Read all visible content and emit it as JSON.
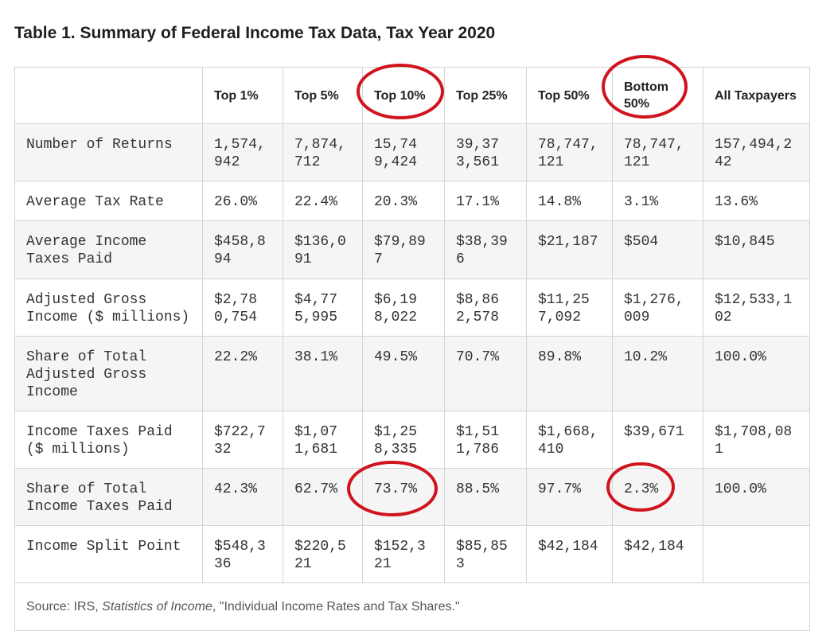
{
  "title": "Table 1. Summary of Federal Income Tax Data, Tax Year 2020",
  "table": {
    "headers": [
      "",
      "Top 1%",
      "Top 5%",
      "Top 10%",
      "Top 25%",
      "Top 50%",
      "Bottom 50%",
      "All Taxpayers"
    ],
    "rows": [
      {
        "label": "Number of Returns",
        "values": [
          "1,574,942",
          "7,874,712",
          "15,749,424",
          "39,373,561",
          "78,747,121",
          "78,747,121",
          "157,494,242"
        ]
      },
      {
        "label": "Average Tax Rate",
        "values": [
          "26.0%",
          "22.4%",
          "20.3%",
          "17.1%",
          "14.8%",
          "3.1%",
          "13.6%"
        ]
      },
      {
        "label": "Average Income Taxes Paid",
        "values": [
          "$458,894",
          "$136,091",
          "$79,897",
          "$38,396",
          "$21,187",
          "$504",
          "$10,845"
        ]
      },
      {
        "label": "Adjusted Gross Income ($ millions)",
        "values": [
          "$2,780,754",
          "$4,775,995",
          "$6,198,022",
          "$8,862,578",
          "$11,257,092",
          "$1,276,009",
          "$12,533,102"
        ]
      },
      {
        "label": "Share of Total Adjusted Gross Income",
        "values": [
          "22.2%",
          "38.1%",
          "49.5%",
          "70.7%",
          "89.8%",
          "10.2%",
          "100.0%"
        ]
      },
      {
        "label": "Income Taxes Paid ($ millions)",
        "values": [
          "$722,732",
          "$1,071,681",
          "$1,258,335",
          "$1,511,786",
          "$1,668,410",
          "$39,671",
          "$1,708,081"
        ]
      },
      {
        "label": "Share of Total Income Taxes Paid",
        "values": [
          "42.3%",
          "62.7%",
          "73.7%",
          "88.5%",
          "97.7%",
          "2.3%",
          "100.0%"
        ]
      },
      {
        "label": "Income Split Point",
        "values": [
          "$548,336",
          "$220,521",
          "$152,321",
          "$85,853",
          "$42,184",
          "$42,184",
          ""
        ]
      }
    ],
    "source": {
      "prefix": "Source: IRS, ",
      "italic": "Statistics of Income",
      "suffix": ", \"Individual Income Rates and Tax Shares.\""
    }
  },
  "annotations": {
    "color": "#d0141e",
    "circled": [
      "Top 10%",
      "Bottom 50%",
      "73.7%",
      "2.3%"
    ]
  }
}
